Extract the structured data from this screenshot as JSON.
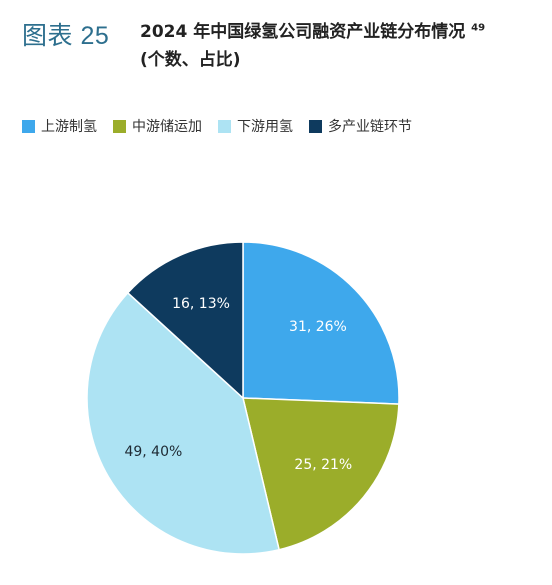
{
  "figure": {
    "label": "图表 25"
  },
  "chart_data": {
    "type": "pie",
    "title": "2024 年中国绿氢公司融资产业链分布情况",
    "title_footnote": "49",
    "subtitle": "(个数、占比)",
    "legend_position": "top-left",
    "slices": [
      {
        "name": "上游制氢",
        "value": 31,
        "percent": "26%",
        "color": "#3ea8ec",
        "label_color": "#ffffff"
      },
      {
        "name": "中游储运加",
        "value": 25,
        "percent": "21%",
        "color": "#9bad2a",
        "label_color": "#ffffff"
      },
      {
        "name": "下游用氢",
        "value": 49,
        "percent": "40%",
        "color": "#ade3f3",
        "label_color": "#1e2a33"
      },
      {
        "name": "多产业链环节",
        "value": 16,
        "percent": "13%",
        "color": "#0e3a5e",
        "label_color": "#ffffff"
      }
    ]
  }
}
